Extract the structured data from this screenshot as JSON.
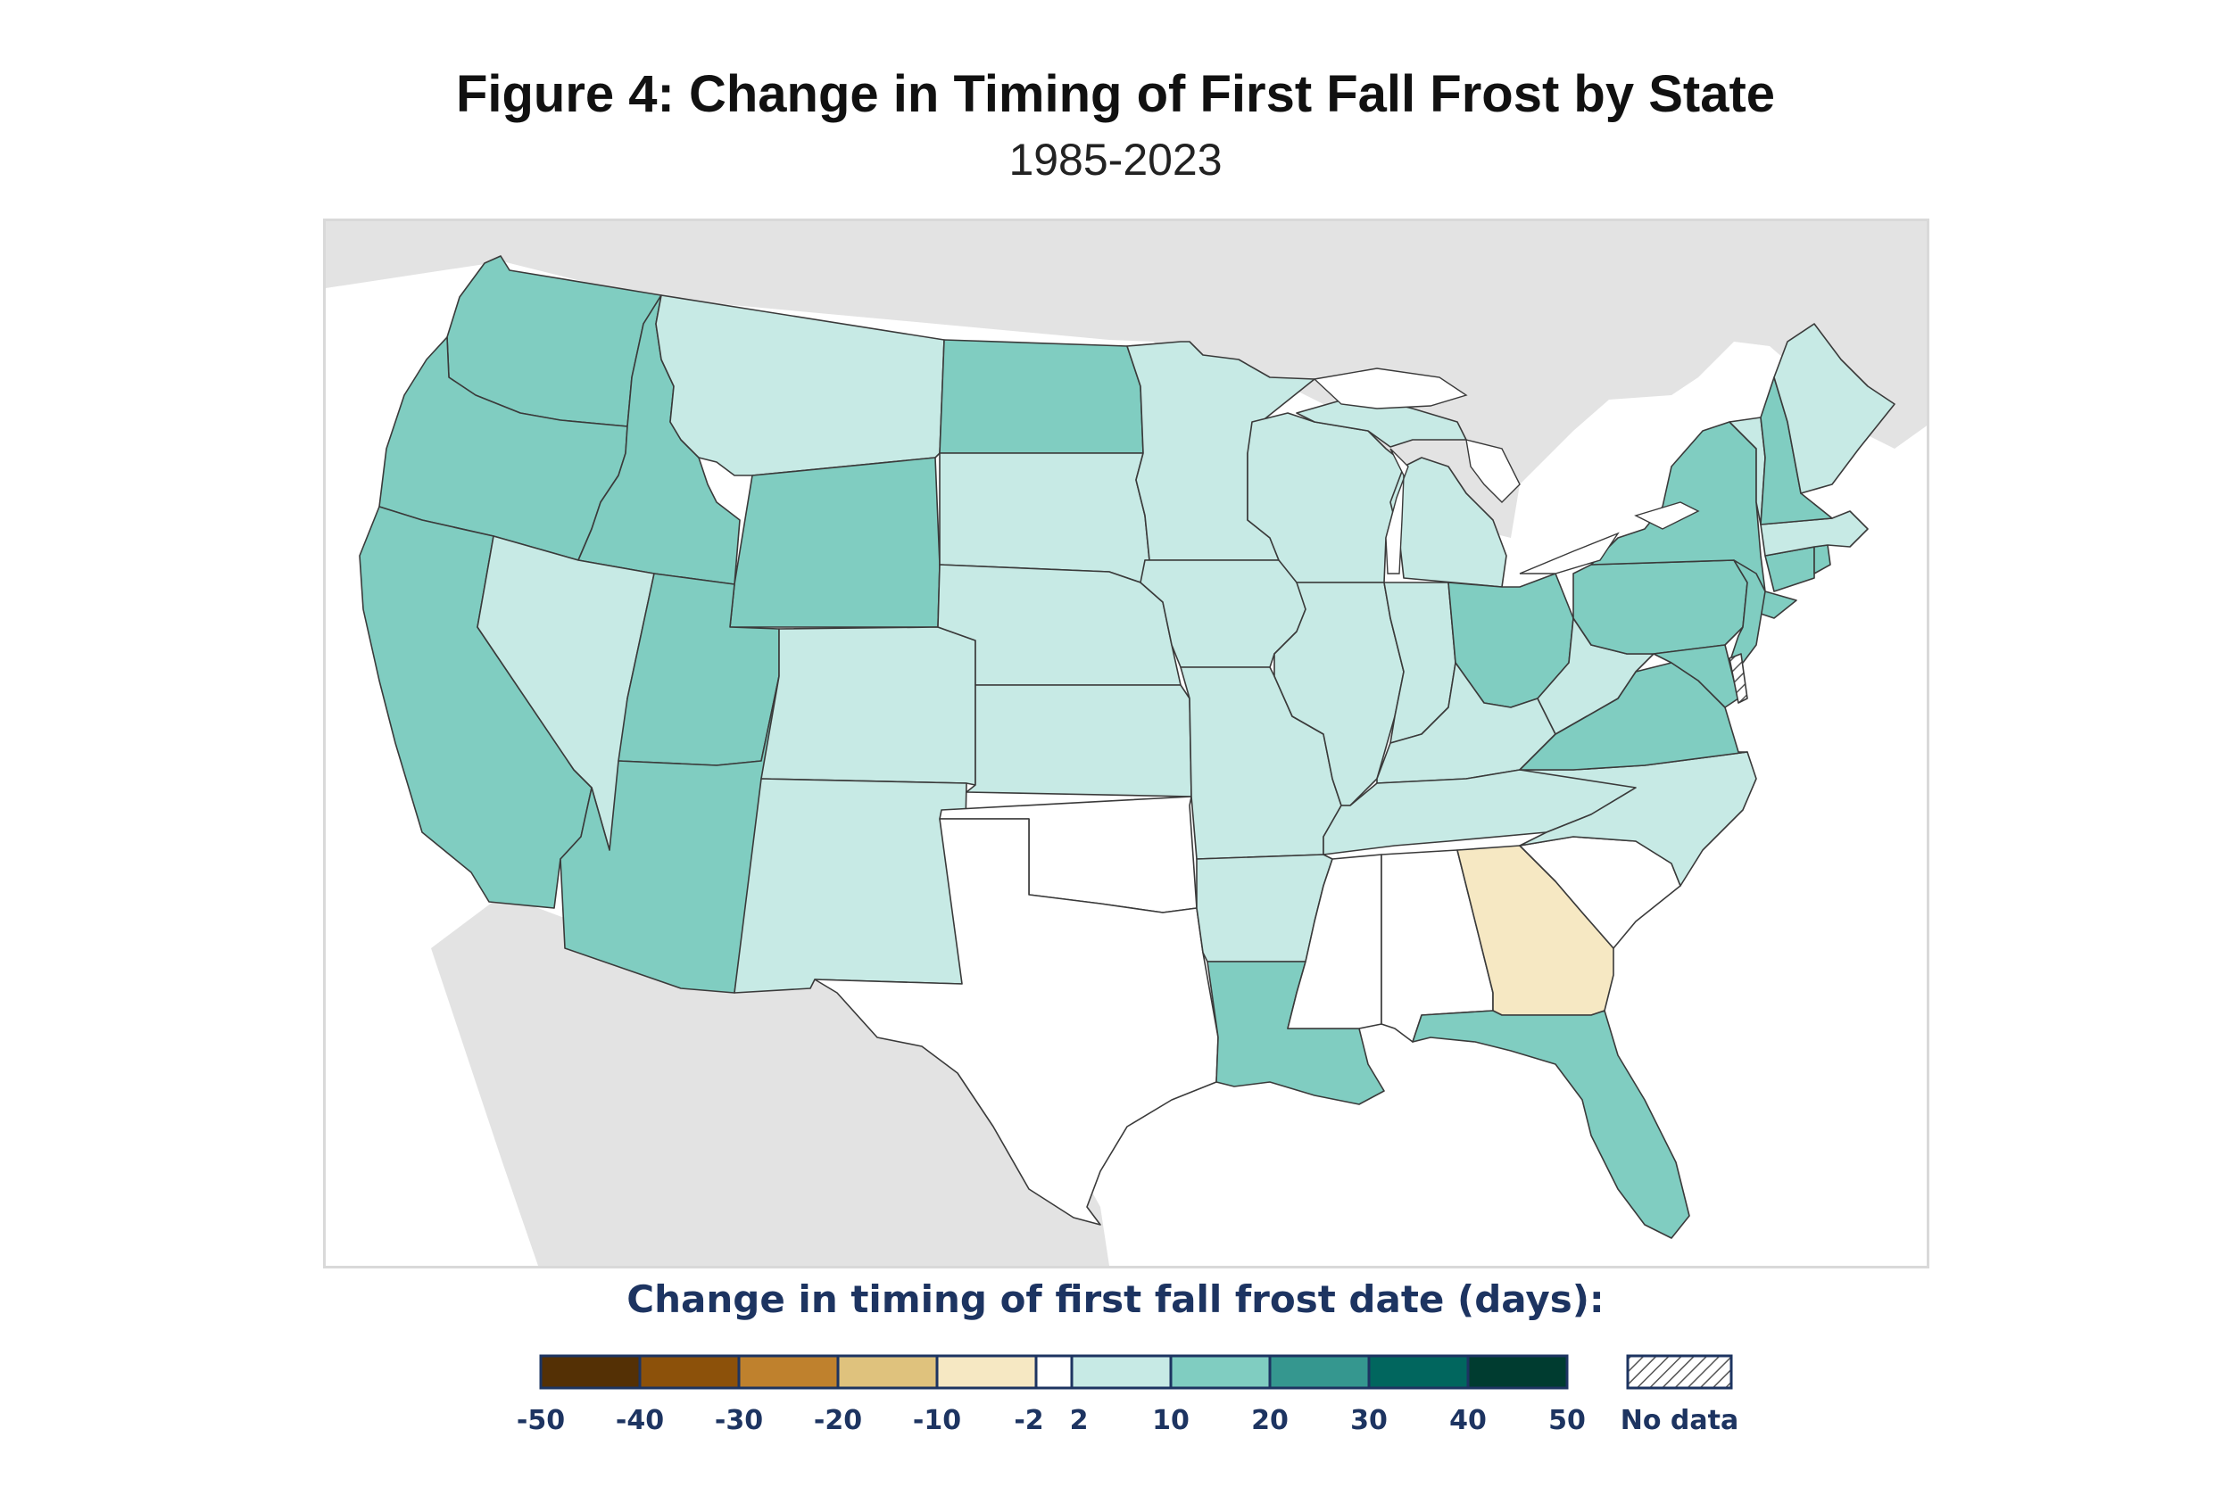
{
  "title": "Figure 4: Change in Timing of First Fall Frost by State",
  "subtitle": "1985-2023",
  "legend": {
    "title": "Change in timing of first fall frost date (days):",
    "bins": [
      {
        "from": -50,
        "to": -40,
        "color": "#543005"
      },
      {
        "from": -40,
        "to": -30,
        "color": "#8c510a"
      },
      {
        "from": -30,
        "to": -20,
        "color": "#bf812d"
      },
      {
        "from": -20,
        "to": -10,
        "color": "#dfc27d"
      },
      {
        "from": -10,
        "to": -2,
        "color": "#f6e8c3"
      },
      {
        "from": -2,
        "to": 2,
        "color": "#ffffff"
      },
      {
        "from": 2,
        "to": 10,
        "color": "#c7eae5"
      },
      {
        "from": 10,
        "to": 20,
        "color": "#80cdc1"
      },
      {
        "from": 20,
        "to": 30,
        "color": "#35978f"
      },
      {
        "from": 30,
        "to": 40,
        "color": "#01665e"
      },
      {
        "from": 40,
        "to": 50,
        "color": "#003c30"
      }
    ],
    "tick_labels": [
      "-50",
      "-40",
      "-30",
      "-20",
      "-10",
      "-2",
      "2",
      "10",
      "20",
      "30",
      "40",
      "50"
    ],
    "no_data_label": "No data"
  },
  "colors": {
    "background_land": "#e3e3e3",
    "water": "#ffffff",
    "state_border": "#3a3a3a",
    "legend_text": "#1d3461"
  },
  "map_data": {
    "states": [
      {
        "abbr": "WA",
        "bin": "10 to 20"
      },
      {
        "abbr": "OR",
        "bin": "10 to 20"
      },
      {
        "abbr": "CA",
        "bin": "10 to 20"
      },
      {
        "abbr": "ID",
        "bin": "10 to 20"
      },
      {
        "abbr": "NV",
        "bin": "2 to 10"
      },
      {
        "abbr": "MT",
        "bin": "2 to 10"
      },
      {
        "abbr": "WY",
        "bin": "10 to 20"
      },
      {
        "abbr": "UT",
        "bin": "10 to 20"
      },
      {
        "abbr": "AZ",
        "bin": "10 to 20"
      },
      {
        "abbr": "CO",
        "bin": "2 to 10"
      },
      {
        "abbr": "NM",
        "bin": "2 to 10"
      },
      {
        "abbr": "ND",
        "bin": "10 to 20"
      },
      {
        "abbr": "SD",
        "bin": "2 to 10"
      },
      {
        "abbr": "NE",
        "bin": "2 to 10"
      },
      {
        "abbr": "KS",
        "bin": "2 to 10"
      },
      {
        "abbr": "OK",
        "bin": "-2 to 2"
      },
      {
        "abbr": "TX",
        "bin": "-2 to 2"
      },
      {
        "abbr": "MN",
        "bin": "2 to 10"
      },
      {
        "abbr": "IA",
        "bin": "2 to 10"
      },
      {
        "abbr": "MO",
        "bin": "2 to 10"
      },
      {
        "abbr": "AR",
        "bin": "2 to 10"
      },
      {
        "abbr": "LA",
        "bin": "10 to 20"
      },
      {
        "abbr": "WI",
        "bin": "2 to 10"
      },
      {
        "abbr": "IL",
        "bin": "2 to 10"
      },
      {
        "abbr": "MI",
        "bin": "2 to 10"
      },
      {
        "abbr": "IN",
        "bin": "2 to 10"
      },
      {
        "abbr": "OH",
        "bin": "10 to 20"
      },
      {
        "abbr": "KY",
        "bin": "2 to 10"
      },
      {
        "abbr": "TN",
        "bin": "2 to 10"
      },
      {
        "abbr": "MS",
        "bin": "-2 to 2"
      },
      {
        "abbr": "AL",
        "bin": "-2 to 2"
      },
      {
        "abbr": "GA",
        "bin": "-10 to -2"
      },
      {
        "abbr": "FL",
        "bin": "10 to 20"
      },
      {
        "abbr": "SC",
        "bin": "-2 to 2"
      },
      {
        "abbr": "NC",
        "bin": "2 to 10"
      },
      {
        "abbr": "VA",
        "bin": "10 to 20"
      },
      {
        "abbr": "WV",
        "bin": "2 to 10"
      },
      {
        "abbr": "PA",
        "bin": "10 to 20"
      },
      {
        "abbr": "NY",
        "bin": "10 to 20"
      },
      {
        "abbr": "NJ",
        "bin": "10 to 20"
      },
      {
        "abbr": "MD",
        "bin": "10 to 20"
      },
      {
        "abbr": "DE",
        "bin": "No data"
      },
      {
        "abbr": "CT",
        "bin": "10 to 20"
      },
      {
        "abbr": "RI",
        "bin": "10 to 20"
      },
      {
        "abbr": "MA",
        "bin": "2 to 10"
      },
      {
        "abbr": "VT",
        "bin": "2 to 10"
      },
      {
        "abbr": "NH",
        "bin": "10 to 20"
      },
      {
        "abbr": "ME",
        "bin": "2 to 10"
      }
    ]
  }
}
